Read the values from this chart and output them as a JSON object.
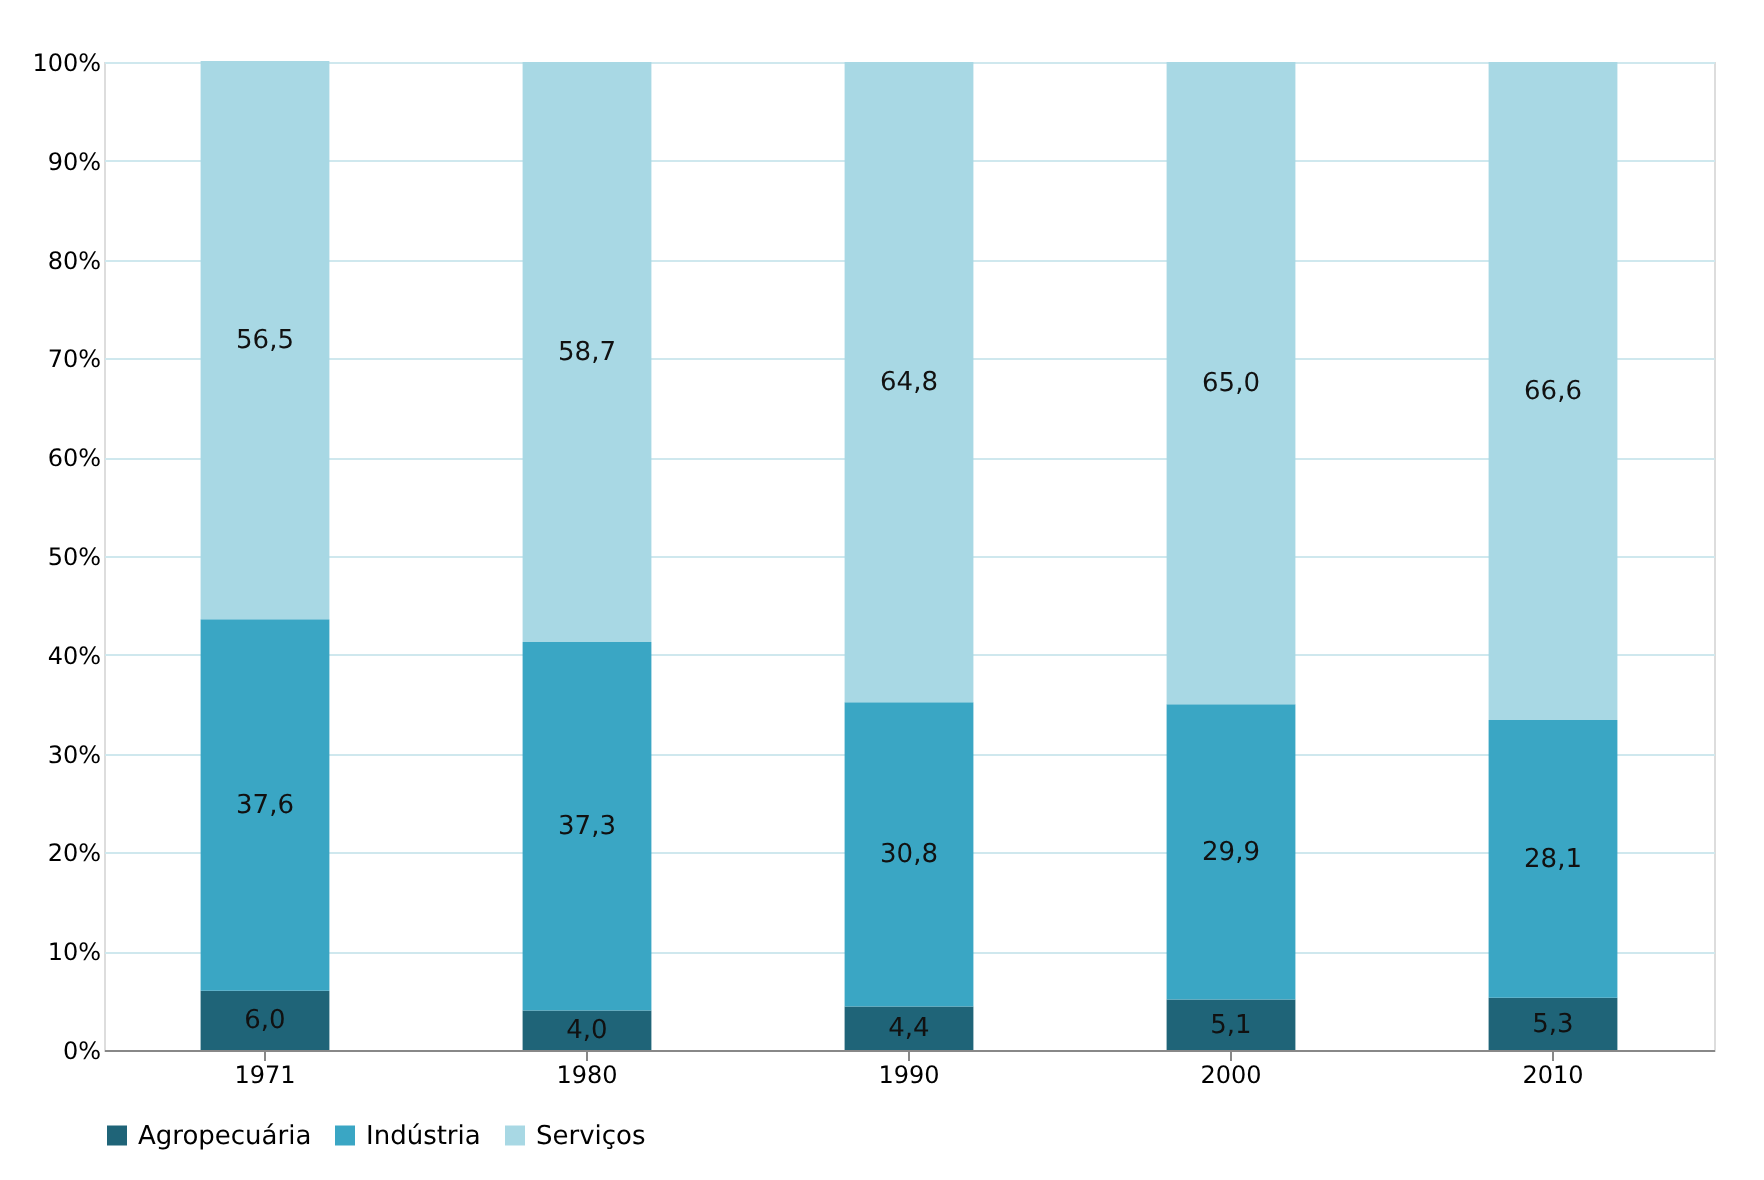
{
  "chart_data": {
    "type": "bar",
    "stacked": true,
    "categories": [
      "1971",
      "1980",
      "1990",
      "2000",
      "2010"
    ],
    "series": [
      {
        "name": "Agropecuária",
        "color": "#1f6478",
        "values": [
          6.0,
          4.0,
          4.4,
          5.1,
          5.3
        ],
        "value_labels": [
          "6,0",
          "4,0",
          "4,4",
          "5,1",
          "5,3"
        ]
      },
      {
        "name": "Indústria",
        "color": "#3aa6c4",
        "values": [
          37.6,
          37.3,
          30.8,
          29.9,
          28.1
        ],
        "value_labels": [
          "37,6",
          "37,3",
          "30,8",
          "29,9",
          "28,1"
        ]
      },
      {
        "name": "Serviços",
        "color": "#a8d8e4",
        "values": [
          56.5,
          58.7,
          64.8,
          65.0,
          66.6
        ],
        "value_labels": [
          "56,5",
          "58,7",
          "64,8",
          "65,0",
          "66,6"
        ]
      }
    ],
    "ylim": [
      0,
      100
    ],
    "yticks": [
      {
        "value": 0,
        "label": "0%"
      },
      {
        "value": 10,
        "label": "10%"
      },
      {
        "value": 20,
        "label": "20%"
      },
      {
        "value": 30,
        "label": "30%"
      },
      {
        "value": 40,
        "label": "40%"
      },
      {
        "value": 50,
        "label": "50%"
      },
      {
        "value": 60,
        "label": "60%"
      },
      {
        "value": 70,
        "label": "70%"
      },
      {
        "value": 80,
        "label": "80%"
      },
      {
        "value": 90,
        "label": "90%"
      },
      {
        "value": 100,
        "label": "100%"
      }
    ],
    "grid": "y",
    "legend": "bottom"
  }
}
